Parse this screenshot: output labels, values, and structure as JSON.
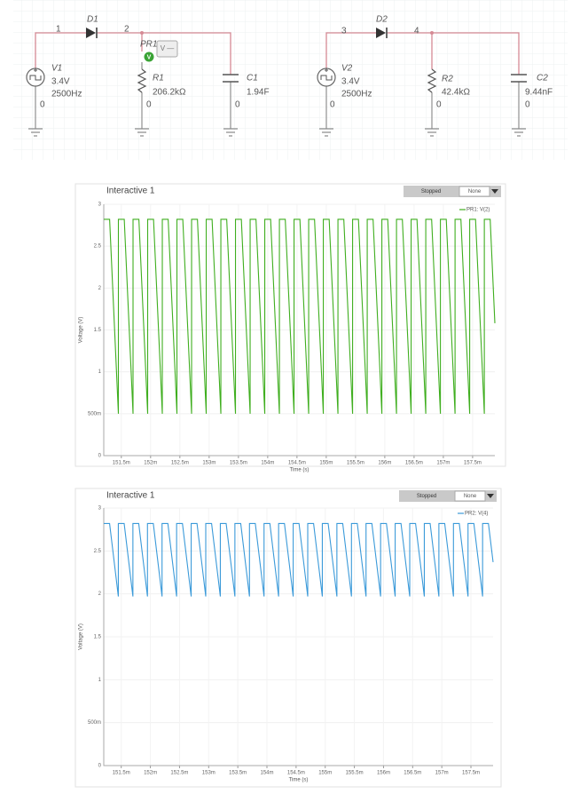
{
  "circuit": {
    "nodes": [
      "1",
      "2",
      "3",
      "4"
    ],
    "sources": [
      {
        "name": "V1",
        "amplitude": "3.4V",
        "frequency": "2500Hz"
      },
      {
        "name": "V2",
        "amplitude": "3.4V",
        "frequency": "2500Hz"
      }
    ],
    "diodes": [
      "D1",
      "D2"
    ],
    "resistors": [
      {
        "name": "R1",
        "value": "206.2kΩ"
      },
      {
        "name": "R2",
        "value": "42.4kΩ"
      }
    ],
    "capacitors": [
      {
        "name": "C1",
        "value": "1.94F"
      },
      {
        "name": "C2",
        "value": "9.44nF"
      }
    ],
    "probe": {
      "name": "PR1",
      "icon": "V",
      "readout": "V —"
    },
    "ground_labels": [
      "0",
      "0",
      "0",
      "0",
      "0",
      "0"
    ]
  },
  "chart_data": [
    {
      "type": "line",
      "title": "Interactive 1",
      "status": "Stopped",
      "dropdown": "None",
      "xlabel": "Time (s)",
      "ylabel": "Voltage (V)",
      "grid": true,
      "legend": "top-right",
      "x": [
        0.1512,
        0.1513,
        0.15145,
        0.15145,
        0.15155,
        0.1517,
        0.1517,
        0.1518,
        0.15195,
        0.15195,
        0.15205,
        0.1522,
        0.1522,
        0.1523,
        0.15245,
        0.15245,
        0.15255,
        0.1527,
        0.1527,
        0.1528,
        0.15295,
        0.15295,
        0.15305,
        0.1532,
        0.1532,
        0.1533,
        0.15345,
        0.15345,
        0.15355,
        0.1537,
        0.1537,
        0.1538,
        0.15395,
        0.15395,
        0.15405,
        0.1542,
        0.1542,
        0.1543,
        0.15445,
        0.15445,
        0.15455,
        0.1547,
        0.1547,
        0.1548,
        0.15495,
        0.15495,
        0.15505,
        0.1552,
        0.1552,
        0.1553,
        0.15545,
        0.15545,
        0.15555,
        0.1557,
        0.1557,
        0.1558,
        0.15595,
        0.15595,
        0.15605,
        0.1562,
        0.1562,
        0.1563,
        0.15645,
        0.15645,
        0.15655,
        0.1567,
        0.1567,
        0.1568,
        0.15695,
        0.15695,
        0.15705,
        0.1572,
        0.1572,
        0.1573,
        0.15745,
        0.15745,
        0.15755,
        0.1577,
        0.1577,
        0.1578,
        0.15788
      ],
      "series": [
        {
          "name": "PR1: V(2)",
          "color": "#3fae1f",
          "values": [
            2.82,
            2.82,
            0.5,
            2.82,
            2.82,
            0.5,
            2.82,
            2.82,
            0.5,
            2.82,
            2.82,
            0.5,
            2.82,
            2.82,
            0.5,
            2.82,
            2.82,
            0.5,
            2.82,
            2.82,
            0.5,
            2.82,
            2.82,
            0.5,
            2.82,
            2.82,
            0.5,
            2.82,
            2.82,
            0.5,
            2.82,
            2.82,
            0.5,
            2.82,
            2.82,
            0.5,
            2.82,
            2.82,
            0.5,
            2.82,
            2.82,
            0.5,
            2.82,
            2.82,
            0.5,
            2.82,
            2.82,
            0.5,
            2.82,
            2.82,
            0.5,
            2.82,
            2.82,
            0.5,
            2.82,
            2.82,
            0.5,
            2.82,
            2.82,
            0.5,
            2.82,
            2.82,
            0.5,
            2.82,
            2.82,
            0.5,
            2.82,
            2.82,
            0.5,
            2.82,
            2.82,
            0.5,
            2.82,
            2.82,
            0.5,
            2.82,
            2.82,
            0.5,
            2.82,
            2.82,
            1.58
          ]
        }
      ],
      "xlim": [
        0.1512,
        0.15788
      ],
      "ylim": [
        0,
        3
      ],
      "xticks": [
        {
          "value": 0.1515,
          "label": "151.5m"
        },
        {
          "value": 0.152,
          "label": "152m"
        },
        {
          "value": 0.1525,
          "label": "152.5m"
        },
        {
          "value": 0.153,
          "label": "153m"
        },
        {
          "value": 0.1535,
          "label": "153.5m"
        },
        {
          "value": 0.154,
          "label": "154m"
        },
        {
          "value": 0.1545,
          "label": "154.5m"
        },
        {
          "value": 0.155,
          "label": "155m"
        },
        {
          "value": 0.1555,
          "label": "155.5m"
        },
        {
          "value": 0.156,
          "label": "156m"
        },
        {
          "value": 0.1565,
          "label": "156.5m"
        },
        {
          "value": 0.157,
          "label": "157m"
        },
        {
          "value": 0.1575,
          "label": "157.5m"
        }
      ],
      "yticks": [
        0,
        {
          "value": 0.5,
          "label": "500m"
        },
        1,
        1.5,
        2,
        2.5,
        3
      ]
    },
    {
      "type": "line",
      "title": "Interactive 1",
      "status": "Stopped",
      "dropdown": "None",
      "xlabel": "Time (s)",
      "ylabel": "Voltage (V)",
      "grid": true,
      "legend": "top-right",
      "x": [
        0.1512,
        0.1513,
        0.15145,
        0.15145,
        0.15155,
        0.1517,
        0.1517,
        0.1518,
        0.15195,
        0.15195,
        0.15205,
        0.1522,
        0.1522,
        0.1523,
        0.15245,
        0.15245,
        0.15255,
        0.1527,
        0.1527,
        0.1528,
        0.15295,
        0.15295,
        0.15305,
        0.1532,
        0.1532,
        0.1533,
        0.15345,
        0.15345,
        0.15355,
        0.1537,
        0.1537,
        0.1538,
        0.15395,
        0.15395,
        0.15405,
        0.1542,
        0.1542,
        0.1543,
        0.15445,
        0.15445,
        0.15455,
        0.1547,
        0.1547,
        0.1548,
        0.15495,
        0.15495,
        0.15505,
        0.1552,
        0.1552,
        0.1553,
        0.15545,
        0.15545,
        0.15555,
        0.1557,
        0.1557,
        0.1558,
        0.15595,
        0.15595,
        0.15605,
        0.1562,
        0.1562,
        0.1563,
        0.15645,
        0.15645,
        0.15655,
        0.1567,
        0.1567,
        0.1568,
        0.15695,
        0.15695,
        0.15705,
        0.1572,
        0.1572,
        0.1573,
        0.15745,
        0.15745,
        0.15755,
        0.1577,
        0.1577,
        0.1578,
        0.15788
      ],
      "series": [
        {
          "name": "PR2: V(4)",
          "color": "#3b9ad9",
          "values": [
            2.82,
            2.82,
            1.97,
            2.82,
            2.82,
            1.97,
            2.82,
            2.82,
            1.97,
            2.82,
            2.82,
            1.97,
            2.82,
            2.82,
            1.97,
            2.82,
            2.82,
            1.97,
            2.82,
            2.82,
            1.97,
            2.82,
            2.82,
            1.97,
            2.82,
            2.82,
            1.97,
            2.82,
            2.82,
            1.97,
            2.82,
            2.82,
            1.97,
            2.82,
            2.82,
            1.97,
            2.82,
            2.82,
            1.97,
            2.82,
            2.82,
            1.97,
            2.82,
            2.82,
            1.97,
            2.82,
            2.82,
            1.97,
            2.82,
            2.82,
            1.97,
            2.82,
            2.82,
            1.97,
            2.82,
            2.82,
            1.97,
            2.82,
            2.82,
            1.97,
            2.82,
            2.82,
            1.97,
            2.82,
            2.82,
            1.97,
            2.82,
            2.82,
            1.97,
            2.82,
            2.82,
            1.97,
            2.82,
            2.82,
            1.97,
            2.82,
            2.82,
            1.97,
            2.82,
            2.82,
            2.37
          ]
        }
      ],
      "xlim": [
        0.1512,
        0.15788
      ],
      "ylim": [
        0,
        3
      ],
      "xticks": [
        {
          "value": 0.1515,
          "label": "151.5m"
        },
        {
          "value": 0.152,
          "label": "152m"
        },
        {
          "value": 0.1525,
          "label": "152.5m"
        },
        {
          "value": 0.153,
          "label": "153m"
        },
        {
          "value": 0.1535,
          "label": "153.5m"
        },
        {
          "value": 0.154,
          "label": "154m"
        },
        {
          "value": 0.1545,
          "label": "154.5m"
        },
        {
          "value": 0.155,
          "label": "155m"
        },
        {
          "value": 0.1555,
          "label": "155.5m"
        },
        {
          "value": 0.156,
          "label": "156m"
        },
        {
          "value": 0.1565,
          "label": "156.5m"
        },
        {
          "value": 0.157,
          "label": "157m"
        },
        {
          "value": 0.1575,
          "label": "157.5m"
        }
      ],
      "yticks": [
        0,
        {
          "value": 0.5,
          "label": "500m"
        },
        1,
        1.5,
        2,
        2.5,
        3
      ]
    }
  ]
}
